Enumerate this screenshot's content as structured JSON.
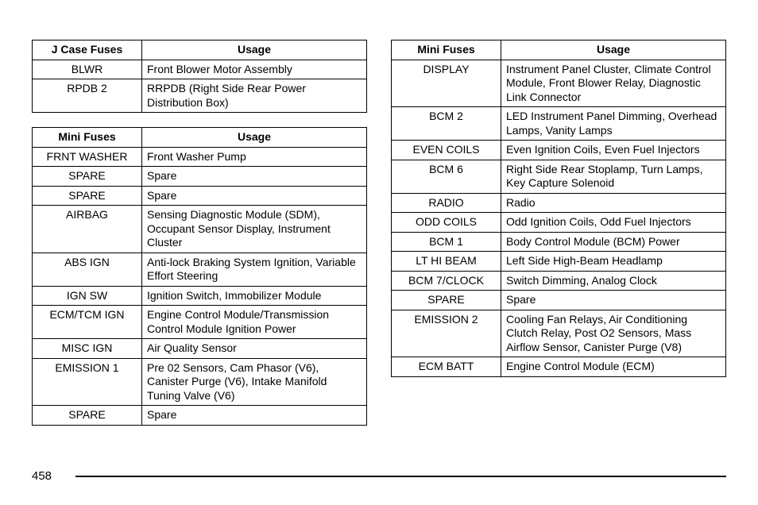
{
  "pageNumber": "458",
  "tables": {
    "jcase": {
      "headers": [
        "J Case Fuses",
        "Usage"
      ],
      "rows": [
        [
          "BLWR",
          "Front Blower Motor Assembly"
        ],
        [
          "RPDB 2",
          "RRPDB (Right Side Rear Power Distribution Box)"
        ]
      ]
    },
    "miniLeft": {
      "headers": [
        "Mini Fuses",
        "Usage"
      ],
      "rows": [
        [
          "FRNT WASHER",
          "Front Washer Pump"
        ],
        [
          "SPARE",
          "Spare"
        ],
        [
          "SPARE",
          "Spare"
        ],
        [
          "AIRBAG",
          "Sensing Diagnostic Module (SDM), Occupant Sensor Display, Instrument Cluster"
        ],
        [
          "ABS IGN",
          "Anti-lock Braking System Ignition, Variable Effort Steering"
        ],
        [
          "IGN SW",
          "Ignition Switch, Immobilizer Module"
        ],
        [
          "ECM/TCM IGN",
          "Engine Control Module/Transmission Control Module Ignition Power"
        ],
        [
          "MISC IGN",
          "Air Quality Sensor"
        ],
        [
          "EMISSION 1",
          "Pre 02 Sensors, Cam Phasor (V6), Canister Purge (V6), Intake Manifold Tuning Valve (V6)"
        ],
        [
          "SPARE",
          "Spare"
        ]
      ]
    },
    "miniRight": {
      "headers": [
        "Mini Fuses",
        "Usage"
      ],
      "rows": [
        [
          "DISPLAY",
          "Instrument Panel Cluster, Climate Control Module, Front Blower Relay, Diagnostic Link Connector"
        ],
        [
          "BCM 2",
          "LED Instrument Panel Dimming, Overhead Lamps, Vanity Lamps"
        ],
        [
          "EVEN COILS",
          "Even Ignition Coils, Even Fuel Injectors"
        ],
        [
          "BCM 6",
          "Right Side Rear Stoplamp, Turn Lamps, Key Capture Solenoid"
        ],
        [
          "RADIO",
          "Radio"
        ],
        [
          "ODD COILS",
          "Odd Ignition Coils, Odd Fuel Injectors"
        ],
        [
          "BCM 1",
          "Body Control Module (BCM) Power"
        ],
        [
          "LT HI BEAM",
          "Left Side High-Beam Headlamp"
        ],
        [
          "BCM 7/CLOCK",
          "Switch Dimming, Analog Clock"
        ],
        [
          "SPARE",
          "Spare"
        ],
        [
          "EMISSION 2",
          "Cooling Fan Relays, Air Conditioning Clutch Relay, Post O2 Sensors, Mass Airflow Sensor, Canister Purge (V8)"
        ],
        [
          "ECM BATT",
          "Engine Control Module (ECM)"
        ]
      ]
    }
  }
}
